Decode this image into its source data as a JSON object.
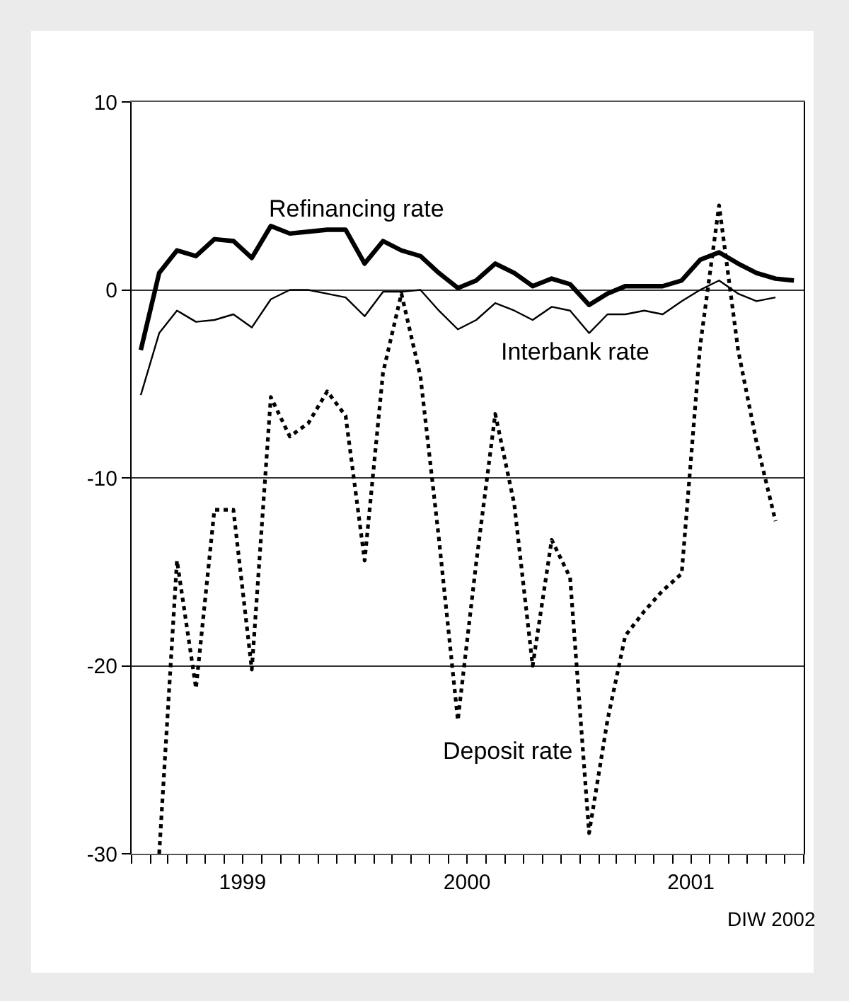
{
  "chart_data": {
    "type": "line",
    "x": [
      "1999-01-16",
      "1999-02-15",
      "1999-03-16",
      "1999-04-16",
      "1999-05-16",
      "1999-06-16",
      "1999-07-16",
      "1999-08-16",
      "1999-09-16",
      "1999-10-16",
      "1999-11-16",
      "1999-12-16",
      "2000-01-16",
      "2000-02-15",
      "2000-03-16",
      "2000-04-16",
      "2000-05-16",
      "2000-06-16",
      "2000-07-16",
      "2000-08-16",
      "2000-09-16",
      "2000-10-16",
      "2000-11-16",
      "2000-12-16",
      "2001-01-16",
      "2001-02-15",
      "2001-03-16",
      "2001-04-16",
      "2001-05-16",
      "2001-06-16",
      "2001-07-16",
      "2001-08-16",
      "2001-09-16",
      "2001-10-16",
      "2001-11-16",
      "2001-12-16"
    ],
    "series": [
      {
        "name": "Refinancing rate",
        "color": "#000000",
        "line_style": "solid",
        "values": [
          -3.2,
          0.9,
          2.1,
          1.8,
          2.7,
          2.6,
          1.7,
          3.4,
          3.0,
          3.1,
          3.2,
          3.2,
          1.4,
          2.6,
          2.1,
          1.8,
          0.9,
          0.1,
          0.5,
          1.4,
          0.9,
          0.2,
          0.6,
          0.3,
          -0.8,
          -0.2,
          0.2,
          0.2,
          0.2,
          0.5,
          1.6,
          2.0,
          1.4,
          0.9,
          0.6,
          0.5
        ]
      },
      {
        "name": "Interbank rate",
        "color": "#000000",
        "line_style": "solid",
        "values": [
          -5.6,
          -2.3,
          -1.1,
          -1.7,
          -1.6,
          -1.3,
          -2.0,
          -0.5,
          0.0,
          0.0,
          -0.2,
          -0.4,
          -1.4,
          -0.1,
          -0.1,
          0.0,
          -1.1,
          -2.1,
          -1.6,
          -0.7,
          -1.1,
          -1.6,
          -0.9,
          -1.1,
          -2.3,
          -1.3,
          -1.3,
          -1.1,
          -1.3,
          -0.6,
          0.0,
          0.5,
          -0.2,
          -0.6,
          -0.4,
          null
        ]
      },
      {
        "name": "Deposit rate",
        "color": "#000000",
        "line_style": "dotted",
        "values": [
          null,
          -30,
          -14.4,
          -21.2,
          -11.7,
          -11.7,
          -20.2,
          -5.7,
          -7.8,
          -7.1,
          -5.4,
          -6.7,
          -14.4,
          -4.4,
          -0.2,
          -4.6,
          -13.2,
          -22.9,
          -14.5,
          -6.6,
          -11.4,
          -20,
          -13.3,
          -15.3,
          -28.9,
          -22.9,
          -18.4,
          -17.1,
          -16.0,
          -15.1,
          -3.0,
          4.5,
          -3.2,
          -8.1,
          -12.3,
          null
        ]
      }
    ],
    "xlim": [
      "1999-01",
      "2002-01"
    ],
    "xticks": [
      {
        "value": "1999-01",
        "label": null
      },
      {
        "value": "1999-02",
        "label": null
      },
      {
        "value": "1999-03",
        "label": null
      },
      {
        "value": "1999-04",
        "label": null
      },
      {
        "value": "1999-05",
        "label": null
      },
      {
        "value": "1999-06",
        "label": null
      },
      {
        "value": "1999-07",
        "label": "1999"
      },
      {
        "value": "1999-08",
        "label": null
      },
      {
        "value": "1999-09",
        "label": null
      },
      {
        "value": "1999-10",
        "label": null
      },
      {
        "value": "1999-11",
        "label": null
      },
      {
        "value": "1999-12",
        "label": null
      },
      {
        "value": "2000-01",
        "label": null
      },
      {
        "value": "2000-02",
        "label": null
      },
      {
        "value": "2000-03",
        "label": null
      },
      {
        "value": "2000-04",
        "label": null
      },
      {
        "value": "2000-05",
        "label": null
      },
      {
        "value": "2000-06",
        "label": null
      },
      {
        "value": "2000-07",
        "label": "2000"
      },
      {
        "value": "2000-08",
        "label": null
      },
      {
        "value": "2000-09",
        "label": null
      },
      {
        "value": "2000-10",
        "label": null
      },
      {
        "value": "2000-11",
        "label": null
      },
      {
        "value": "2000-12",
        "label": null
      },
      {
        "value": "2001-01",
        "label": null
      },
      {
        "value": "2001-02",
        "label": null
      },
      {
        "value": "2001-03",
        "label": null
      },
      {
        "value": "2001-04",
        "label": null
      },
      {
        "value": "2001-05",
        "label": null
      },
      {
        "value": "2001-06",
        "label": null
      },
      {
        "value": "2001-07",
        "label": "2001"
      },
      {
        "value": "2001-08",
        "label": null
      },
      {
        "value": "2001-09",
        "label": null
      },
      {
        "value": "2001-10",
        "label": null
      },
      {
        "value": "2001-11",
        "label": null
      },
      {
        "value": "2001-12",
        "label": null
      },
      {
        "value": "2002-01",
        "label": null
      }
    ],
    "ylim": [
      -30,
      10
    ],
    "yticks": [
      -30,
      -20,
      -10,
      0,
      10
    ],
    "grid": "y",
    "legend": false,
    "marker": "none",
    "annotations": [
      "DIW 2002"
    ]
  }
}
